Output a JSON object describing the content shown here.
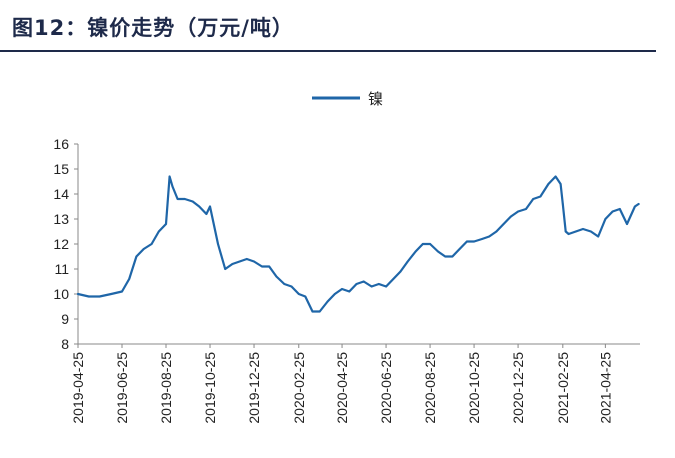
{
  "header": {
    "title": "图12：镍价走势（万元/吨）"
  },
  "colors": {
    "series": "#1f66a8",
    "title": "#1e2a4a",
    "axis": "#888888"
  },
  "chart_data": {
    "type": "line",
    "title": "图12：镍价走势（万元/吨）",
    "xlabel": "",
    "ylabel": "",
    "ylim": [
      8,
      16
    ],
    "yticks": [
      8,
      9,
      10,
      11,
      12,
      13,
      14,
      15,
      16
    ],
    "xticks": [
      "2019-04-25",
      "2019-06-25",
      "2019-08-25",
      "2019-10-25",
      "2019-12-25",
      "2020-02-25",
      "2020-04-25",
      "2020-06-25",
      "2020-08-25",
      "2020-10-25",
      "2020-12-25",
      "2021-02-25",
      "2021-04-25"
    ],
    "legend": {
      "position": "top-center",
      "entries": [
        "镍"
      ]
    },
    "grid": false,
    "series": [
      {
        "name": "镍",
        "x": [
          "2019-04-25",
          "2019-05-10",
          "2019-05-25",
          "2019-06-10",
          "2019-06-25",
          "2019-07-05",
          "2019-07-15",
          "2019-07-25",
          "2019-08-05",
          "2019-08-15",
          "2019-08-25",
          "2019-08-30",
          "2019-09-03",
          "2019-09-10",
          "2019-09-20",
          "2019-10-01",
          "2019-10-10",
          "2019-10-20",
          "2019-10-25",
          "2019-11-05",
          "2019-11-15",
          "2019-11-25",
          "2019-12-05",
          "2019-12-15",
          "2019-12-25",
          "2020-01-05",
          "2020-01-15",
          "2020-01-25",
          "2020-02-05",
          "2020-02-15",
          "2020-02-25",
          "2020-03-05",
          "2020-03-15",
          "2020-03-25",
          "2020-04-05",
          "2020-04-15",
          "2020-04-25",
          "2020-05-05",
          "2020-05-15",
          "2020-05-25",
          "2020-06-05",
          "2020-06-15",
          "2020-06-25",
          "2020-07-05",
          "2020-07-15",
          "2020-07-25",
          "2020-08-05",
          "2020-08-15",
          "2020-08-25",
          "2020-09-05",
          "2020-09-15",
          "2020-09-25",
          "2020-10-05",
          "2020-10-15",
          "2020-10-25",
          "2020-11-05",
          "2020-11-15",
          "2020-11-25",
          "2020-12-05",
          "2020-12-15",
          "2020-12-25",
          "2021-01-05",
          "2021-01-15",
          "2021-01-25",
          "2021-02-05",
          "2021-02-15",
          "2021-02-22",
          "2021-02-25",
          "2021-03-01",
          "2021-03-05",
          "2021-03-15",
          "2021-03-25",
          "2021-04-05",
          "2021-04-15",
          "2021-04-25",
          "2021-05-05",
          "2021-05-15",
          "2021-05-25",
          "2021-06-05",
          "2021-06-10"
        ],
        "y": [
          10.0,
          9.9,
          9.9,
          10.0,
          10.1,
          10.6,
          11.5,
          11.8,
          12.0,
          12.5,
          12.8,
          14.7,
          14.3,
          13.8,
          13.8,
          13.7,
          13.5,
          13.2,
          13.5,
          12.0,
          11.0,
          11.2,
          11.3,
          11.4,
          11.3,
          11.1,
          11.1,
          10.7,
          10.4,
          10.3,
          10.0,
          9.9,
          9.3,
          9.3,
          9.7,
          10.0,
          10.2,
          10.1,
          10.4,
          10.5,
          10.3,
          10.4,
          10.3,
          10.6,
          10.9,
          11.3,
          11.7,
          12.0,
          12.0,
          11.7,
          11.5,
          11.5,
          11.8,
          12.1,
          12.1,
          12.2,
          12.3,
          12.5,
          12.8,
          13.1,
          13.3,
          13.4,
          13.8,
          13.9,
          14.4,
          14.7,
          14.4,
          13.6,
          12.5,
          12.4,
          12.5,
          12.6,
          12.5,
          12.3,
          13.0,
          13.3,
          13.4,
          12.8,
          13.5,
          13.6
        ]
      }
    ]
  }
}
